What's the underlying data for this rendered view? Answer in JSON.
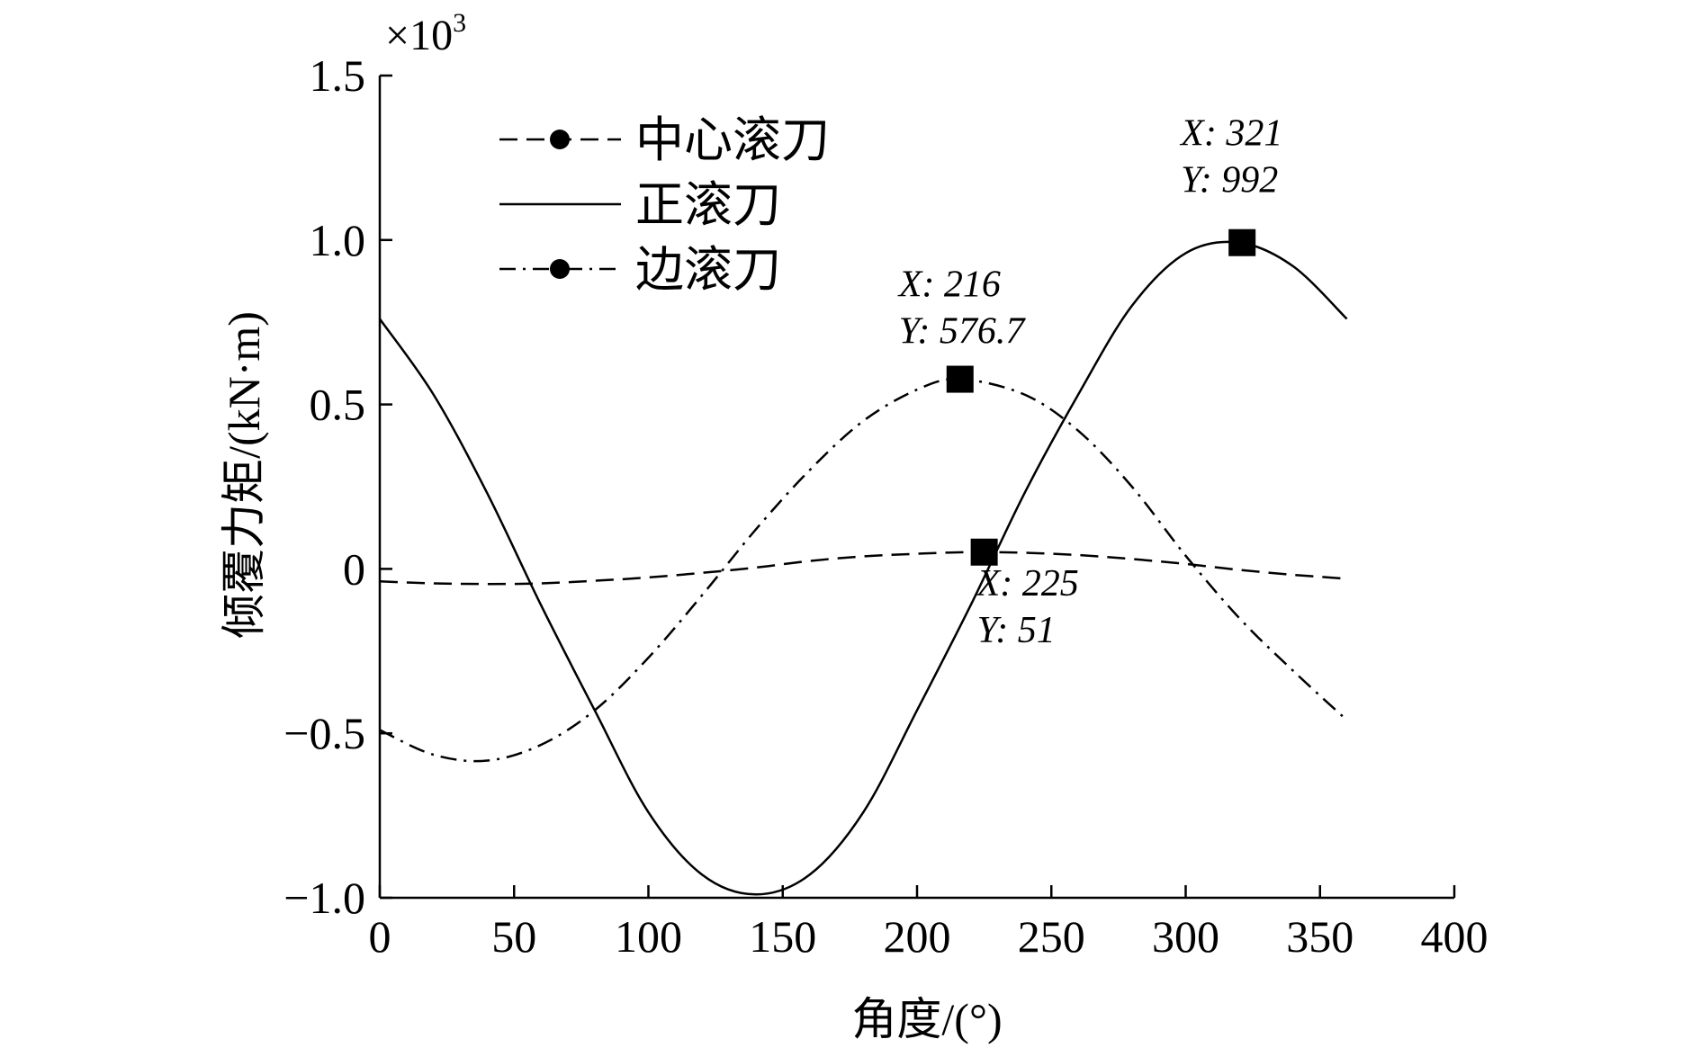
{
  "chart_data": {
    "type": "line",
    "xlabel": "角度/(°)",
    "ylabel": "倾覆力矩/(kN·m)",
    "y_multiplier": "×10",
    "y_multiplier_exp": "3",
    "xlim": [
      0,
      400
    ],
    "ylim": [
      -1000,
      1500
    ],
    "xticks": [
      0,
      50,
      100,
      150,
      200,
      250,
      300,
      350,
      400
    ],
    "xtick_labels": [
      "0",
      "50",
      "100",
      "150",
      "200",
      "250",
      "300",
      "350",
      "400"
    ],
    "yticks": [
      -1000,
      -500,
      0,
      500,
      1000,
      1500
    ],
    "ytick_labels": [
      "−1.0",
      "−0.5",
      "0",
      "0.5",
      "1.0",
      "1.5"
    ],
    "grid": false,
    "legend_position": "top-left",
    "series": [
      {
        "name": "中心滚刀",
        "style": "dashed",
        "marker": "circle",
        "x": [
          0,
          20,
          40,
          60,
          80,
          100,
          120,
          140,
          160,
          180,
          200,
          220,
          240,
          260,
          280,
          300,
          320,
          340,
          360
        ],
        "y": [
          -38,
          -44,
          -46,
          -44,
          -36,
          -26,
          -12,
          4,
          24,
          38,
          46,
          51,
          49,
          42,
          30,
          15,
          -3,
          -18,
          -30
        ]
      },
      {
        "name": "正滚刀",
        "style": "solid",
        "marker": "none",
        "x": [
          0,
          20,
          40,
          60,
          80,
          100,
          120,
          140,
          160,
          180,
          200,
          220,
          240,
          260,
          280,
          300,
          320,
          340,
          360
        ],
        "y": [
          760,
          530,
          230,
          -110,
          -430,
          -740,
          -930,
          -990,
          -930,
          -740,
          -430,
          -110,
          230,
          530,
          800,
          960,
          992,
          920,
          760
        ]
      },
      {
        "name": "边滚刀",
        "style": "dashdot",
        "marker": "circle",
        "x": [
          0,
          20,
          40,
          60,
          80,
          100,
          120,
          140,
          160,
          180,
          200,
          216,
          240,
          260,
          280,
          300,
          320,
          340,
          360
        ],
        "y": [
          -490,
          -565,
          -583,
          -535,
          -430,
          -270,
          -80,
          120,
          300,
          450,
          545,
          577,
          530,
          420,
          250,
          40,
          -150,
          -310,
          -460
        ]
      }
    ],
    "annotations": [
      {
        "x": 321,
        "y": 992,
        "x_text": "X: 321",
        "y_text": "Y: 992"
      },
      {
        "x": 216,
        "y": 576.7,
        "x_text": "X: 216",
        "y_text": "Y: 576.7"
      },
      {
        "x": 225,
        "y": 51,
        "x_text": "X: 225",
        "y_text": "Y: 51"
      }
    ]
  }
}
